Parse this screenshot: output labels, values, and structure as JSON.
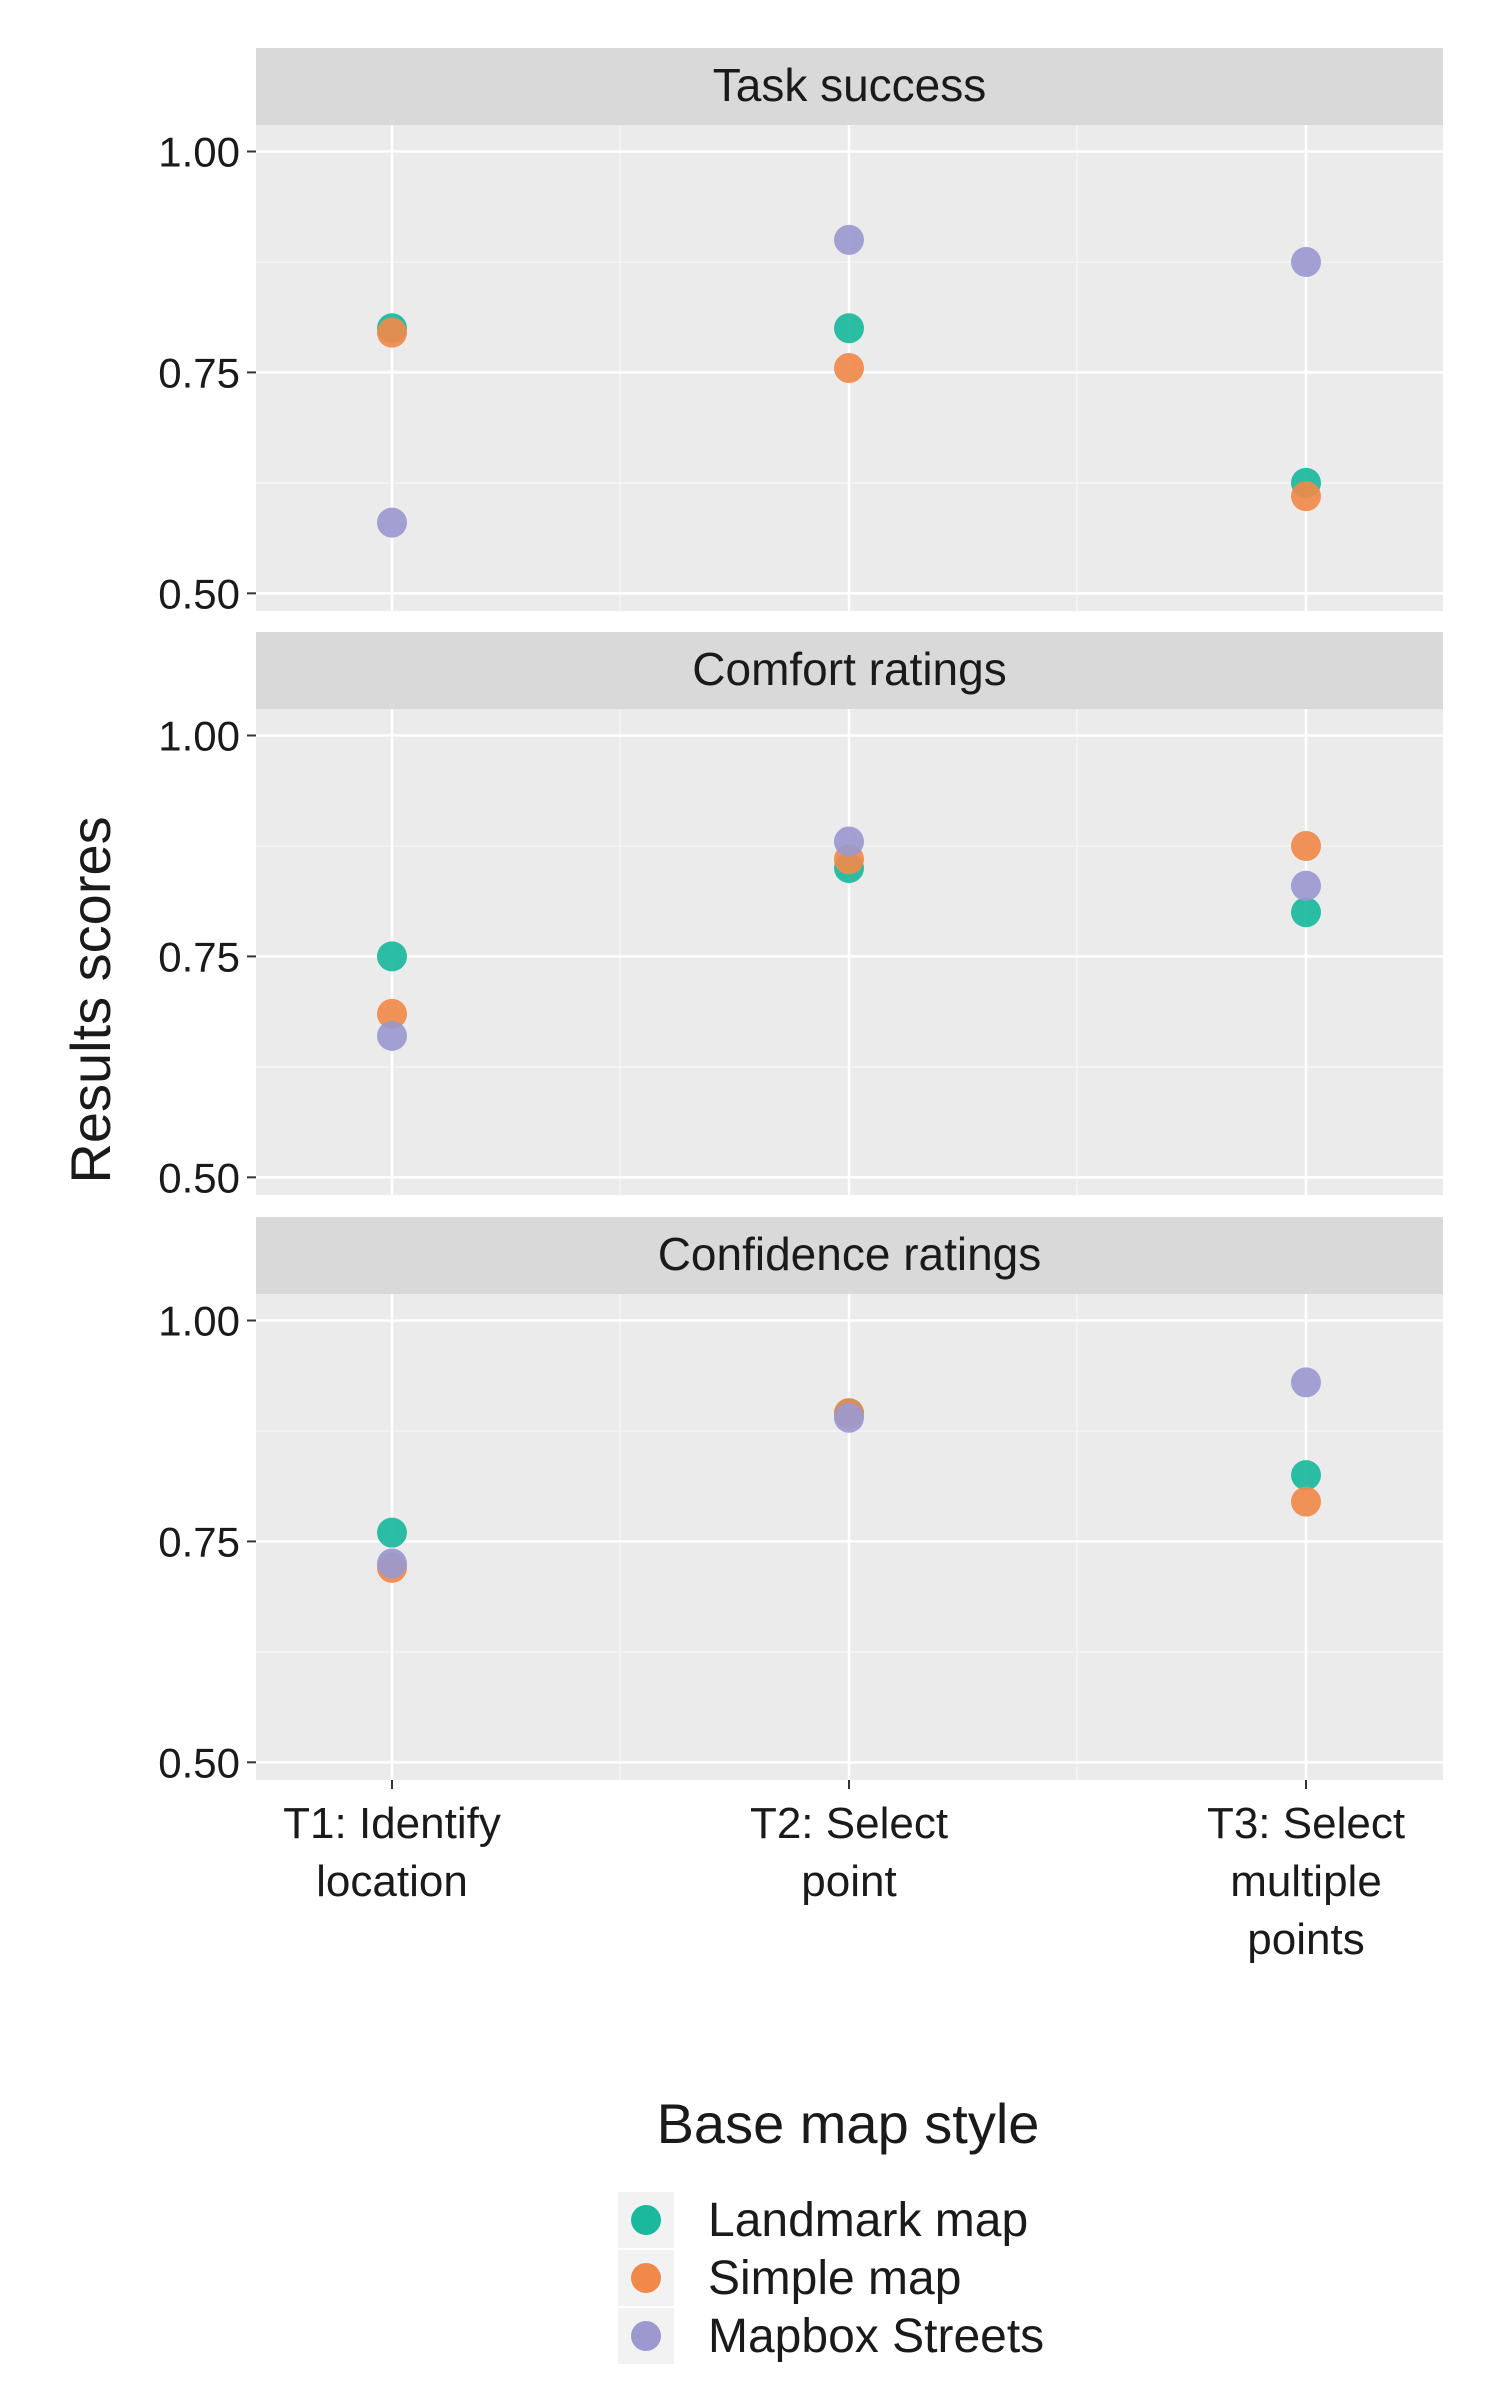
{
  "chart_data": {
    "type": "scatter",
    "ylabel": "Results scores",
    "categories": [
      "T1: Identify location",
      "T2: Select point",
      "T3: Select multiple points"
    ],
    "category_lines": [
      [
        "T1: Identify",
        "location"
      ],
      [
        "T2: Select",
        "point"
      ],
      [
        "T3: Select",
        "multiple",
        "points"
      ]
    ],
    "ylim": [
      0.48,
      1.03
    ],
    "yticks": [
      0.5,
      0.75,
      1.0
    ],
    "ytick_labels": [
      "0.50",
      "0.75",
      "1.00"
    ],
    "grid": true,
    "legend": {
      "title": "Base map style",
      "position": "bottom"
    },
    "series": [
      {
        "name": "Landmark map",
        "color": "#1ab99d"
      },
      {
        "name": "Simple map",
        "color": "#f0894a"
      },
      {
        "name": "Mapbox Streets",
        "color": "#9b99cf"
      }
    ],
    "panels": [
      {
        "title": "Task success",
        "values": {
          "Landmark map": [
            0.8,
            0.8,
            0.625
          ],
          "Simple map": [
            0.795,
            0.755,
            0.61
          ],
          "Mapbox Streets": [
            0.58,
            0.9,
            0.875
          ]
        }
      },
      {
        "title": "Comfort ratings",
        "values": {
          "Landmark map": [
            0.75,
            0.85,
            0.8
          ],
          "Simple map": [
            0.685,
            0.86,
            0.875
          ],
          "Mapbox Streets": [
            0.66,
            0.88,
            0.83
          ]
        }
      },
      {
        "title": "Confidence ratings",
        "values": {
          "Landmark map": [
            0.76,
            0.895,
            0.825
          ],
          "Simple map": [
            0.72,
            0.895,
            0.795
          ],
          "Mapbox Streets": [
            0.725,
            0.89,
            0.93
          ]
        }
      }
    ]
  }
}
